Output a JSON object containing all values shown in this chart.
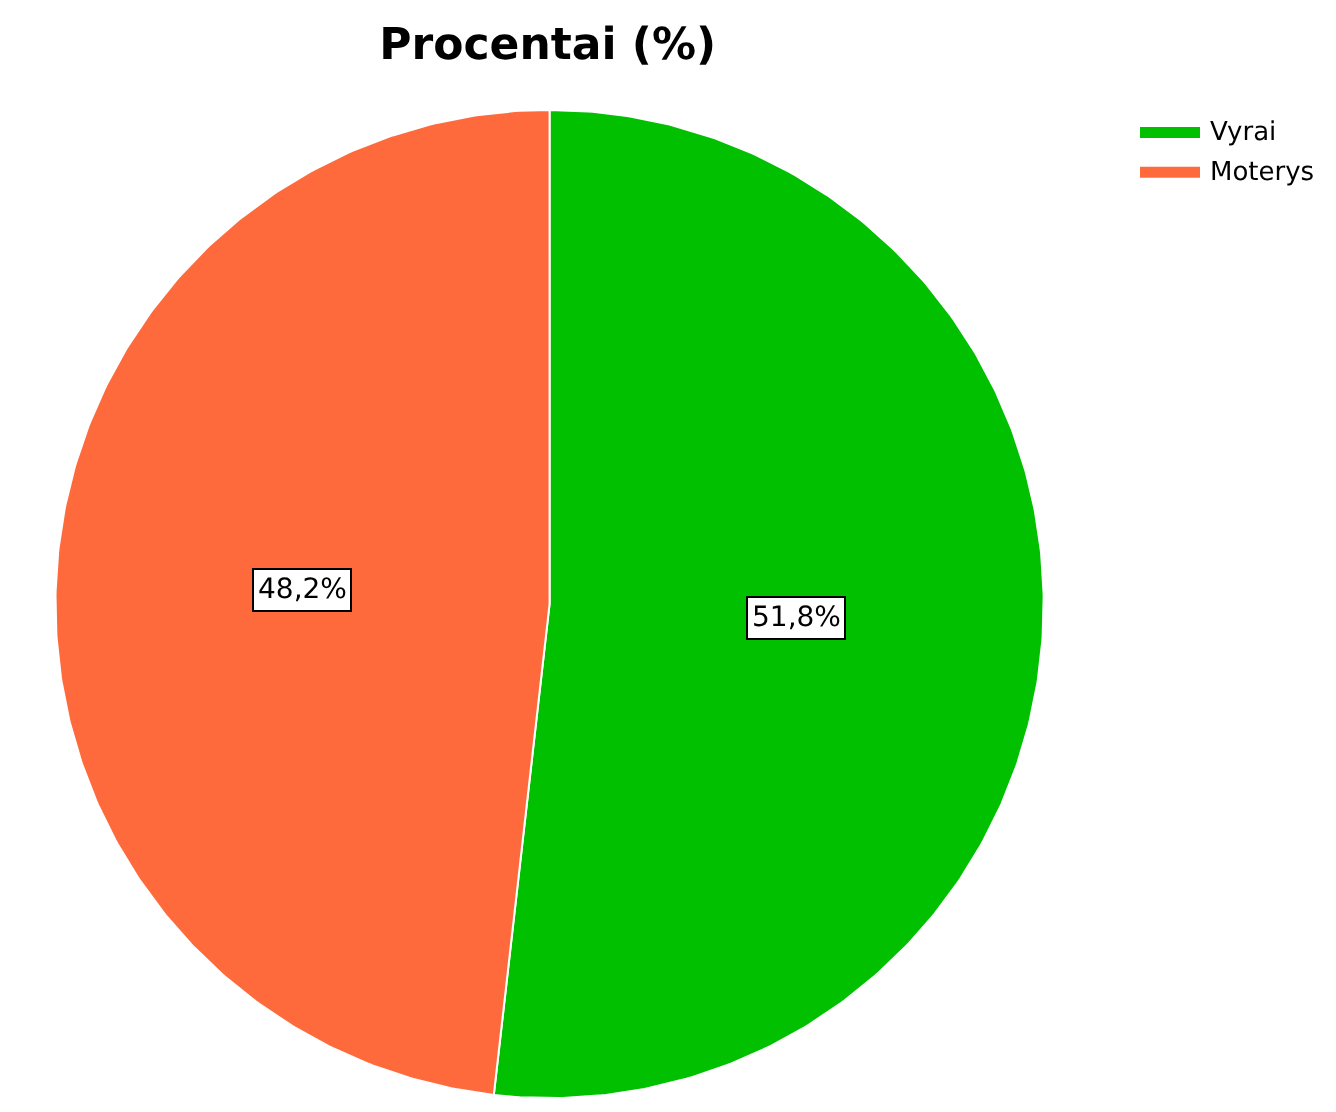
{
  "chart_data": {
    "type": "pie",
    "title": "Procentai (%)",
    "categories": [
      "Vyrai",
      "Moterys"
    ],
    "values": [
      51.8,
      48.2
    ],
    "value_labels": [
      "51,8%",
      "48,2%"
    ],
    "colors": [
      "#00c000",
      "#ff6a3d"
    ],
    "legend": "top right"
  }
}
